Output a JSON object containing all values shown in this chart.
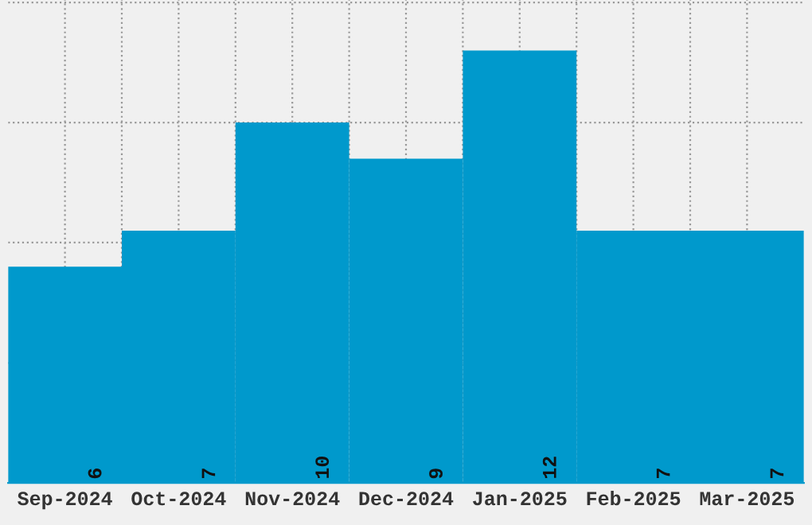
{
  "chart_data": {
    "type": "bar",
    "categories": [
      "Sep-2024",
      "Oct-2024",
      "Nov-2024",
      "Dec-2024",
      "Jan-2025",
      "Feb-2025",
      "Mar-2025"
    ],
    "values": [
      6,
      7,
      10,
      9,
      12,
      7,
      7
    ],
    "color": "#0099cc",
    "data_labels": true,
    "grid": true,
    "ylim": [
      0,
      13.4
    ],
    "yticks": [
      {
        "value": 3.33,
        "label": null
      },
      {
        "value": 6.67,
        "label": null
      },
      {
        "value": 10,
        "label": null
      },
      {
        "value": 13.33,
        "label": null
      }
    ],
    "tick_labels": "x"
  }
}
